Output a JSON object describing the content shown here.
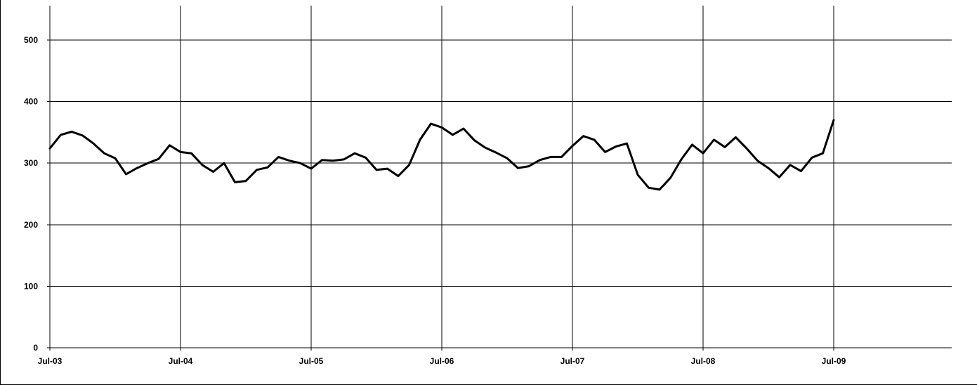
{
  "chart_data": {
    "type": "line",
    "title": "",
    "xlabel": "",
    "ylabel": "",
    "ylim": [
      0,
      550
    ],
    "yticks": [
      0,
      100,
      200,
      300,
      400,
      500
    ],
    "ytick_labels": [
      "0",
      "100",
      "200",
      "300",
      "400",
      "500"
    ],
    "xtick_labels": [
      "Jul-03",
      "Jul-04",
      "Jul-05",
      "Jul-06",
      "Jul-07",
      "Jul-08",
      "Jul-09"
    ],
    "xlim": [
      "2003-07",
      "2010-06"
    ],
    "grid": true,
    "legend": "none",
    "line_color": "#000000",
    "series": [
      {
        "x": [
          "2003-07",
          "2003-08",
          "2003-09",
          "2003-10",
          "2003-11",
          "2003-12",
          "2004-01",
          "2004-02",
          "2004-03",
          "2004-04",
          "2004-05",
          "2004-06",
          "2004-07",
          "2004-08",
          "2004-09",
          "2004-10",
          "2004-11",
          "2004-12",
          "2005-01",
          "2005-02",
          "2005-03",
          "2005-04",
          "2005-05",
          "2005-06",
          "2005-07",
          "2005-08",
          "2005-09",
          "2005-10",
          "2005-11",
          "2005-12",
          "2006-01",
          "2006-02",
          "2006-03",
          "2006-04",
          "2006-05",
          "2006-06",
          "2006-07",
          "2006-08",
          "2006-09",
          "2006-10",
          "2006-11",
          "2006-12",
          "2007-01",
          "2007-02",
          "2007-03",
          "2007-04",
          "2007-05",
          "2007-06",
          "2007-07",
          "2007-08",
          "2007-09",
          "2007-10",
          "2007-11",
          "2007-12",
          "2008-01",
          "2008-02",
          "2008-03",
          "2008-04",
          "2008-05",
          "2008-06",
          "2008-07",
          "2008-08",
          "2008-09",
          "2008-10",
          "2008-11",
          "2008-12",
          "2009-01",
          "2009-02",
          "2009-03",
          "2009-04",
          "2009-05",
          "2009-06",
          "2009-07"
        ],
        "values": [
          324,
          346,
          351,
          345,
          332,
          316,
          308,
          282,
          292,
          300,
          307,
          329,
          318,
          316,
          297,
          286,
          300,
          269,
          271,
          289,
          293,
          310,
          304,
          300,
          291,
          305,
          304,
          306,
          316,
          309,
          289,
          291,
          279,
          297,
          338,
          364,
          358,
          346,
          356,
          337,
          325,
          317,
          308,
          292,
          295,
          305,
          310,
          310,
          328,
          344,
          338,
          318,
          327,
          332,
          281,
          260,
          257,
          276,
          306,
          330,
          316,
          338,
          326,
          342,
          324,
          304,
          292,
          277,
          297,
          287,
          309,
          316,
          370
        ]
      }
    ]
  }
}
